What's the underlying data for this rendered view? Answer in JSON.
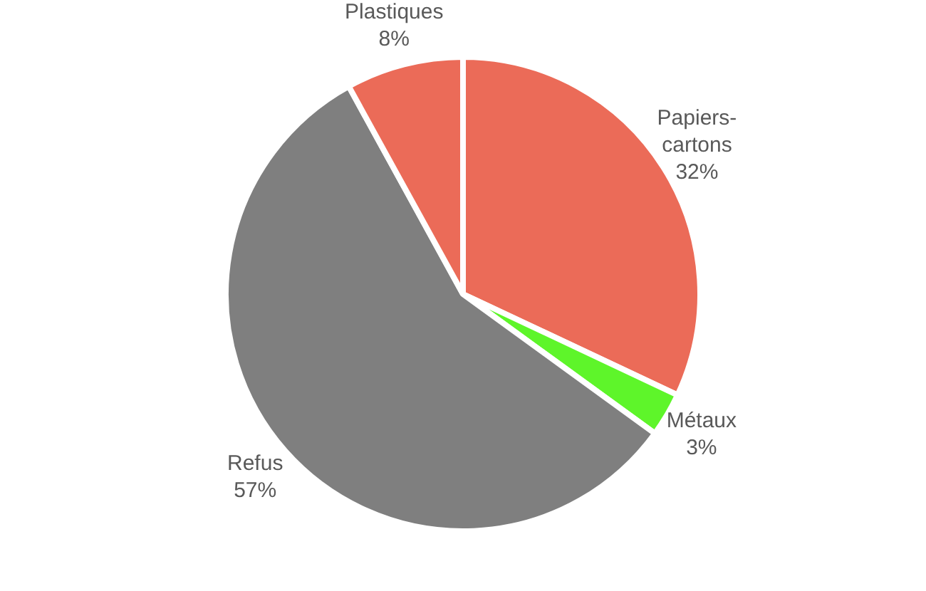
{
  "chart_data": {
    "type": "pie",
    "categories": [
      "Papiers-cartons",
      "Métaux",
      "Refus",
      "Plastiques"
    ],
    "values": [
      32,
      3,
      57,
      8
    ],
    "colors": [
      "#eb6b58",
      "#5ef52a",
      "#7f7f7f",
      "#eb6b58"
    ],
    "value_labels": [
      "32%",
      "3%",
      "57%",
      "8%"
    ],
    "legend": false
  }
}
